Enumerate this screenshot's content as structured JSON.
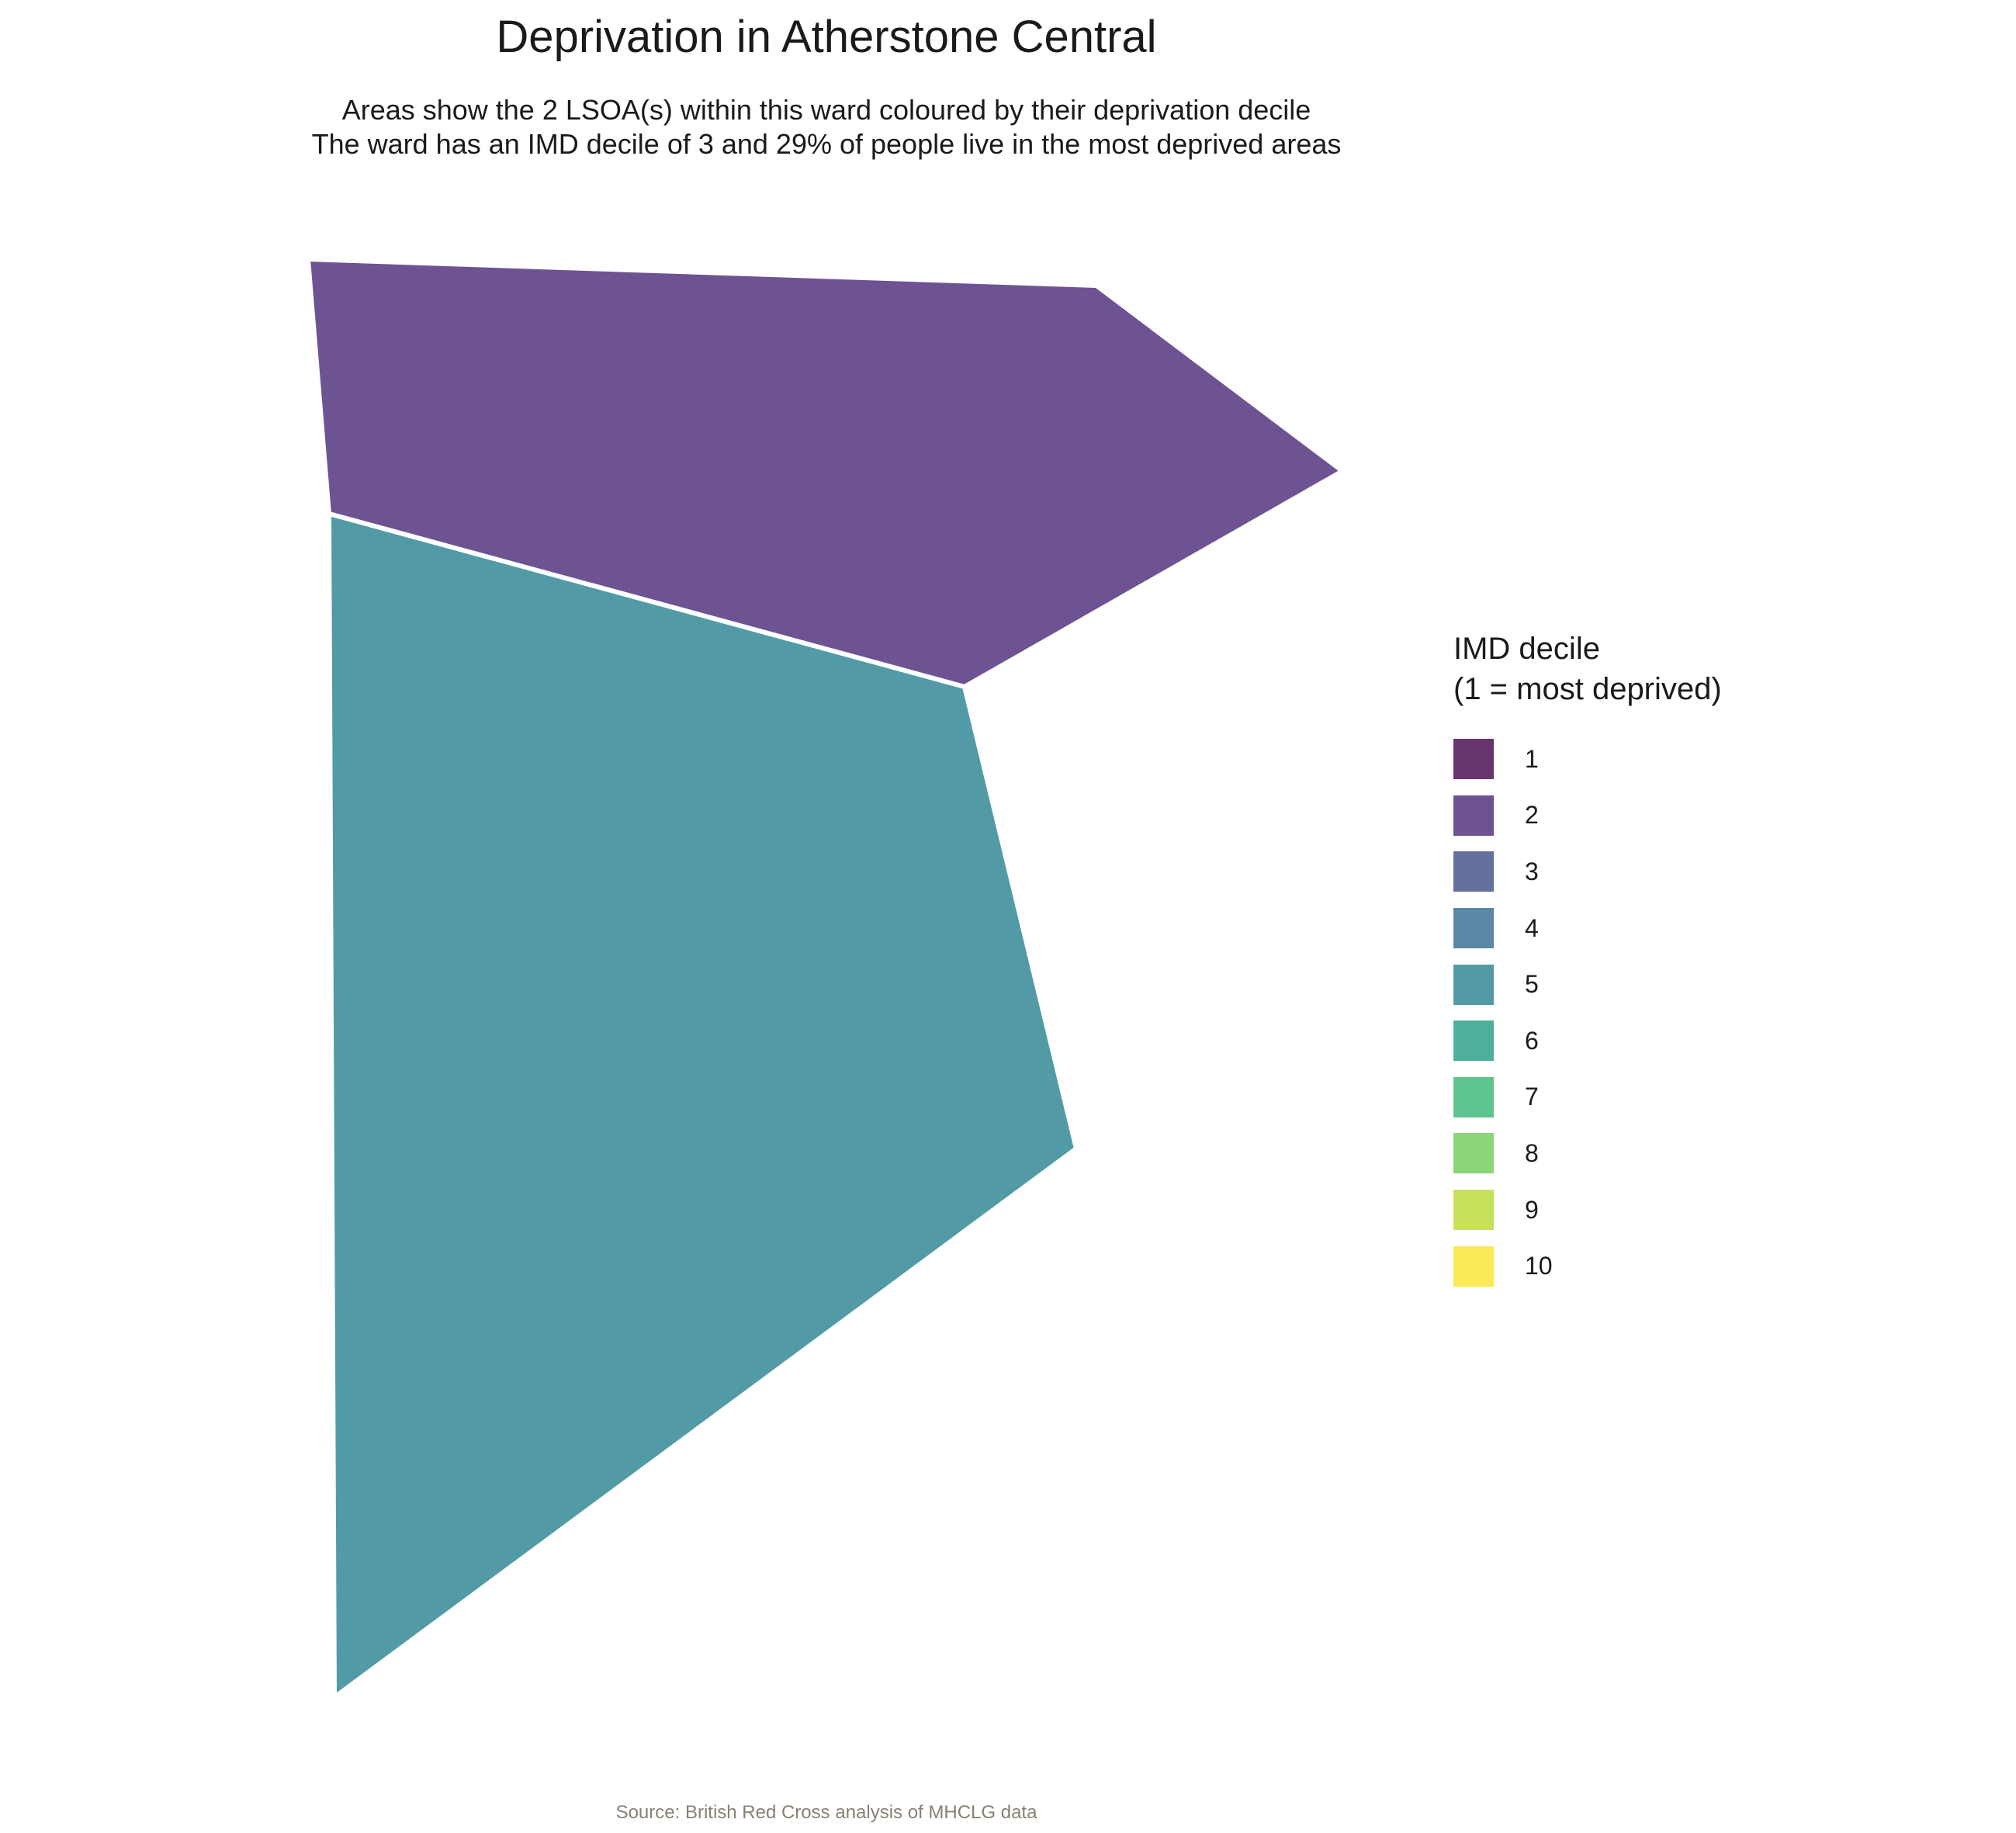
{
  "title": "Deprivation in Atherstone Central",
  "subtitle": [
    "Areas show the 2 LSOA(s) within this ward coloured by their deprivation decile",
    "The ward has an IMD decile of 3 and 29% of people live in the most deprived areas"
  ],
  "legend": {
    "title_lines": [
      "IMD decile",
      "(1 = most deprived)"
    ],
    "items": [
      {
        "label": "1",
        "color": "#67346F"
      },
      {
        "label": "2",
        "color": "#6E5392"
      },
      {
        "label": "3",
        "color": "#65709E"
      },
      {
        "label": "4",
        "color": "#5A87A3"
      },
      {
        "label": "5",
        "color": "#529BA6"
      },
      {
        "label": "6",
        "color": "#4DB09D"
      },
      {
        "label": "7",
        "color": "#5DC48F"
      },
      {
        "label": "8",
        "color": "#8CD579"
      },
      {
        "label": "9",
        "color": "#C6E25A"
      },
      {
        "label": "10",
        "color": "#FBE955"
      }
    ]
  },
  "areas": [
    {
      "name": "northern-lsoa",
      "decile": 2,
      "color": "#6E5392"
    },
    {
      "name": "southern-lsoa",
      "decile": 5,
      "color": "#529BA6"
    }
  ],
  "source": "Source: British Red Cross analysis of MHCLG data"
}
